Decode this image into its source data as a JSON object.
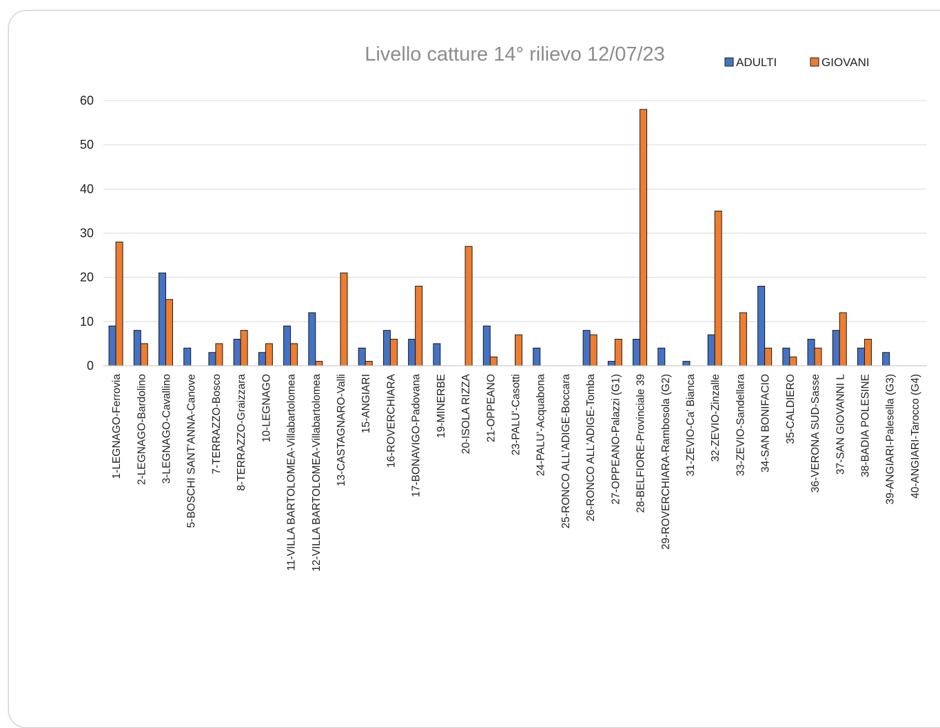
{
  "chart_data": {
    "type": "bar",
    "title": "Livello catture 14° rilievo 12/07/23",
    "xlabel": "",
    "ylabel": "",
    "ylim": [
      0,
      60
    ],
    "yticks": [
      0,
      10,
      20,
      30,
      40,
      50,
      60
    ],
    "grid": true,
    "legend_position": "top-right",
    "categories": [
      "1-LEGNAGO-Ferrovia",
      "2-LEGNAGO-Bardolino",
      "3-LEGNAGO-Cavallino",
      "5-BOSCHI SANT'ANNA-Canove",
      "7-TERRAZZO-Bosco",
      "8-TERRAZZO-Graizzara",
      "10-LEGNAGO",
      "11-VILLA BARTOLOMEA-Villabartolomea",
      "12-VILLA BARTOLOMEA-Villabartolomea",
      "13-CASTAGNARO-Valli",
      "15-ANGIARI",
      "16-ROVERCHIARA",
      "17-BONAVIGO-Padovana",
      "19-MINERBE",
      "20-ISOLA RIZZA",
      "21-OPPEANO",
      "23-PALU'-Casotti",
      "24-PALU'-Acquabona",
      "25-RONCO ALL'ADIGE-Boccara",
      "26-RONCO ALL'ADIGE-Tomba",
      "27-OPPEANO-Palazzi (G1)",
      "28-BELFIORE-Provinciale 39",
      "29-ROVERCHIARA-Rambosola (G2)",
      "31-ZEVIO-Ca' Bianca",
      "32-ZEVIO-Zinzalle",
      "33-ZEVIO-Sandellara",
      "34-SAN BONIFACIO",
      "35-CALDIERO",
      "36-VERONA SUD-Sasse",
      "37-SAN GIOVANNI L",
      "38-BADIA POLESINE",
      "39-ANGIARI-Palesella (G3)",
      "40-ANGIARI-Tarocco (G4)"
    ],
    "series": [
      {
        "name": "ADULTI",
        "color": "#4472c4",
        "values": [
          9,
          8,
          21,
          4,
          3,
          6,
          3,
          9,
          12,
          0,
          4,
          8,
          6,
          5,
          0,
          9,
          0,
          4,
          0,
          8,
          1,
          6,
          4,
          1,
          7,
          0,
          18,
          4,
          6,
          8,
          4,
          3,
          0
        ]
      },
      {
        "name": "GIOVANI",
        "color": "#ed7d31",
        "values": [
          28,
          5,
          15,
          0,
          5,
          8,
          5,
          5,
          1,
          21,
          1,
          6,
          18,
          0,
          27,
          2,
          7,
          0,
          0,
          7,
          6,
          58,
          0,
          0,
          35,
          12,
          4,
          2,
          4,
          12,
          6,
          0,
          0
        ]
      }
    ]
  }
}
